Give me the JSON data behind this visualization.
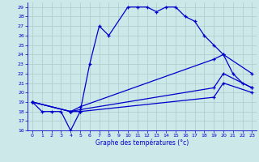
{
  "xlabel": "Graphe des températures (°c)",
  "bg_color": "#cce8e8",
  "grid_color": "#aacccc",
  "line_color": "#0000cc",
  "ylim": [
    16,
    29.5
  ],
  "xlim": [
    -0.5,
    23.5
  ],
  "yticks": [
    16,
    17,
    18,
    19,
    20,
    21,
    22,
    23,
    24,
    25,
    26,
    27,
    28,
    29
  ],
  "xticks": [
    0,
    1,
    2,
    3,
    4,
    5,
    6,
    7,
    8,
    9,
    10,
    11,
    12,
    13,
    14,
    15,
    16,
    17,
    18,
    19,
    20,
    21,
    22,
    23
  ],
  "line1_x": [
    0,
    1,
    2,
    3,
    4,
    5,
    6,
    7,
    8,
    10,
    11,
    12,
    13,
    14,
    15,
    16,
    17,
    18,
    19,
    20,
    21,
    22,
    23
  ],
  "line1_y": [
    19,
    18,
    18,
    18,
    16,
    18,
    23,
    27,
    26,
    29,
    29,
    29,
    28.5,
    29,
    29,
    28,
    27.5,
    26,
    25,
    24,
    22,
    21,
    20.5
  ],
  "line2_x": [
    0,
    4,
    5,
    19,
    20,
    23
  ],
  "line2_y": [
    19,
    18,
    18.5,
    23.5,
    24,
    22
  ],
  "line3_x": [
    0,
    4,
    5,
    19,
    20,
    23
  ],
  "line3_y": [
    19,
    18,
    18.2,
    20.5,
    22,
    20.5
  ],
  "line4_x": [
    0,
    4,
    5,
    19,
    20,
    23
  ],
  "line4_y": [
    19,
    18,
    18,
    19.5,
    21,
    20
  ]
}
